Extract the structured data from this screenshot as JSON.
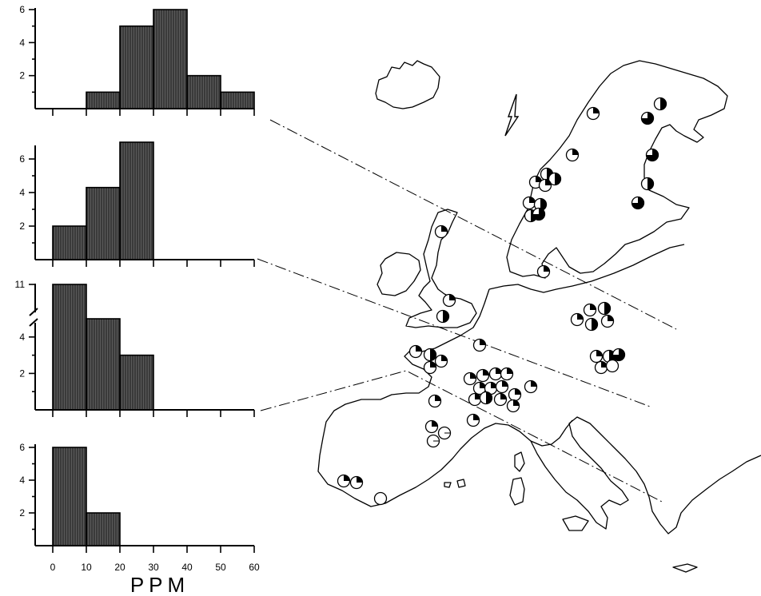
{
  "panels": [
    {
      "id": "panel-1",
      "y_ticks": [
        "2",
        "4",
        "6"
      ],
      "y_max": 6,
      "break": false,
      "bins": [
        {
          "from": 0,
          "to": 10,
          "count": 0
        },
        {
          "from": 10,
          "to": 20,
          "count": 1
        },
        {
          "from": 20,
          "to": 30,
          "count": 5
        },
        {
          "from": 30,
          "to": 40,
          "count": 6
        },
        {
          "from": 40,
          "to": 50,
          "count": 2
        },
        {
          "from": 50,
          "to": 60,
          "count": 1
        }
      ]
    },
    {
      "id": "panel-2",
      "y_ticks": [
        "2",
        "4",
        "6"
      ],
      "y_max": 7,
      "break": false,
      "bins": [
        {
          "from": 0,
          "to": 10,
          "count": 2
        },
        {
          "from": 10,
          "to": 20,
          "count": 4.3
        },
        {
          "from": 20,
          "to": 30,
          "count": 7
        }
      ]
    },
    {
      "id": "panel-3",
      "y_ticks": [
        "2",
        "4",
        "11"
      ],
      "y_max": 11,
      "break": true,
      "bins": [
        {
          "from": 0,
          "to": 10,
          "count": 11
        },
        {
          "from": 10,
          "to": 20,
          "count": 5
        },
        {
          "from": 20,
          "to": 30,
          "count": 3
        }
      ]
    },
    {
      "id": "panel-4",
      "y_ticks": [
        "2",
        "4",
        "6"
      ],
      "y_max": 6,
      "break": false,
      "bins": [
        {
          "from": 0,
          "to": 10,
          "count": 6
        },
        {
          "from": 10,
          "to": 20,
          "count": 2
        }
      ]
    }
  ],
  "x_axis": {
    "ticks": [
      "0",
      "10",
      "20",
      "30",
      "40",
      "50",
      "60"
    ],
    "unit": "PPM"
  },
  "map": {
    "sites_zone_1": [
      0.25,
      0.5,
      0.75,
      0.25,
      0.75,
      0.5,
      0.25,
      0.5,
      0.25,
      0.5,
      0.25,
      0.5,
      0.75,
      0.5,
      0.75,
      0.25
    ],
    "sites_zone_2": [
      0.25,
      0.25,
      0.25,
      0.5,
      0.25,
      0.5,
      0.25,
      0.5,
      0.25,
      0.5,
      0.75,
      0.25
    ],
    "sites_zone_3": [
      0.25,
      0.5,
      0.25,
      0.25,
      0.25,
      0.25,
      0.25,
      0.25,
      0.25,
      0.25,
      0.25,
      0.25,
      0.25,
      0.5,
      0.25,
      0.25,
      0.25,
      0.25,
      0.25,
      0.25,
      0.25
    ],
    "sites_zone_4": [
      0,
      0,
      0.25,
      0.25,
      0,
      0
    ]
  }
}
